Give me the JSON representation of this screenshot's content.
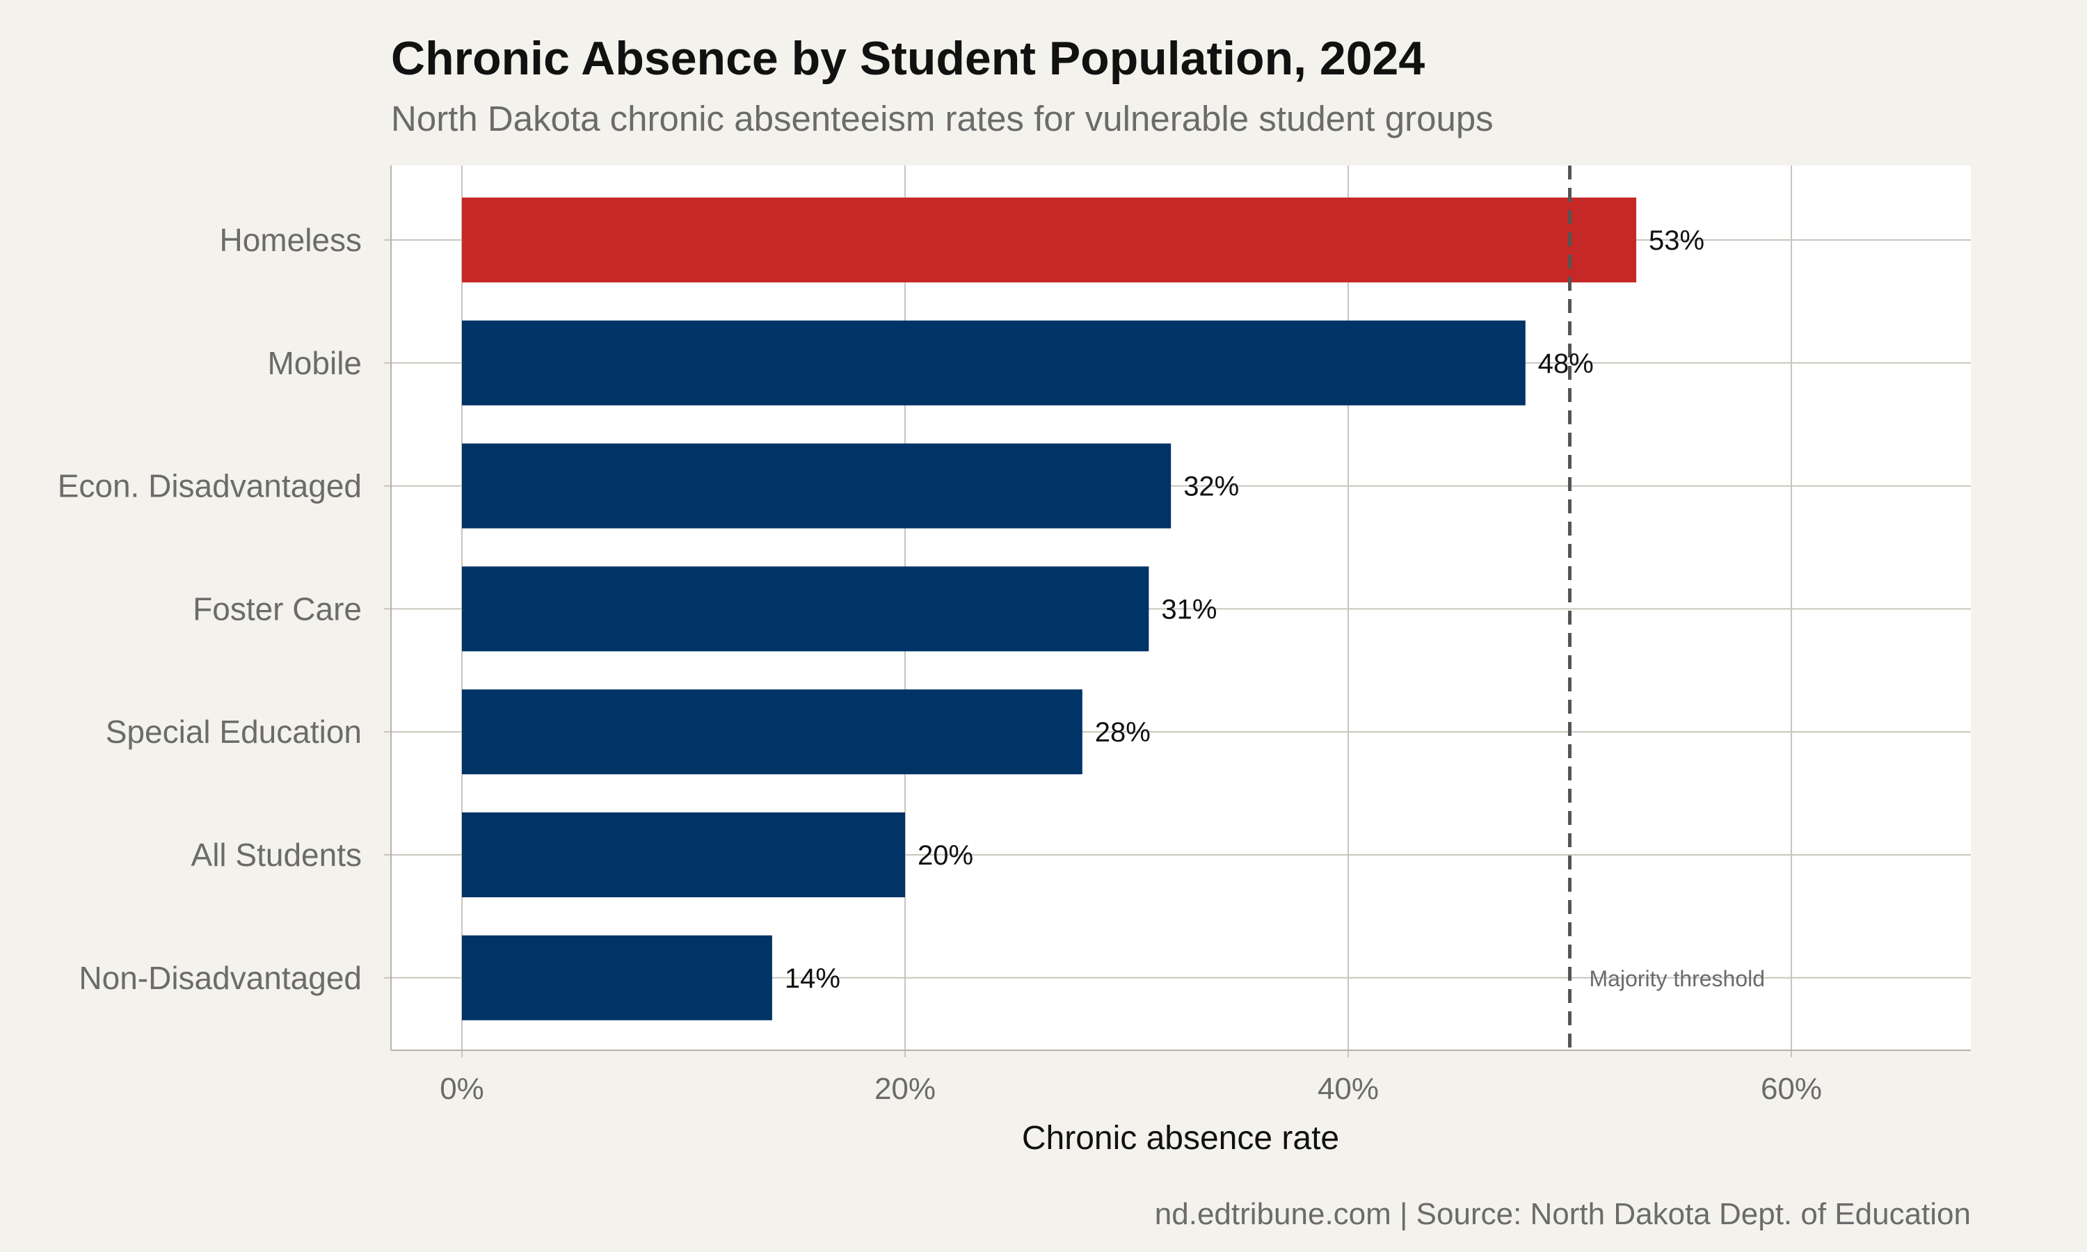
{
  "colors": {
    "background": "#f4f2ed",
    "panel": "#ffffff",
    "highlight_bar": "#c62828",
    "bar": "#003366",
    "grid": "#c8c5bc",
    "threshold_line": "#555555",
    "title": "#111111",
    "muted_text": "#6b6b6b"
  },
  "caption": "nd.edtribune.com | Source: North Dakota Dept. of Education",
  "chart_data": {
    "type": "bar",
    "orientation": "horizontal",
    "title": "Chronic Absence by Student Population, 2024",
    "subtitle": "North Dakota chronic absenteeism rates for vulnerable student groups",
    "xlabel": "Chronic absence rate",
    "ylabel": "",
    "categories": [
      "Homeless",
      "Mobile",
      "Econ. Disadvantaged",
      "Foster Care",
      "Special Education",
      "All Students",
      "Non-Disadvantaged"
    ],
    "values": [
      53,
      48,
      32,
      31,
      28,
      20,
      14
    ],
    "data_labels": [
      "53%",
      "48%",
      "32%",
      "31%",
      "28%",
      "20%",
      "14%"
    ],
    "highlighted_category": "Homeless",
    "xlim": [
      0,
      68
    ],
    "xticks": [
      0,
      20,
      40,
      60
    ],
    "xtick_labels": [
      "0%",
      "20%",
      "40%",
      "60%"
    ],
    "grid": true,
    "legend": "none",
    "reference_line": {
      "value": 50,
      "label": "Majority threshold",
      "style": "dashed"
    }
  }
}
